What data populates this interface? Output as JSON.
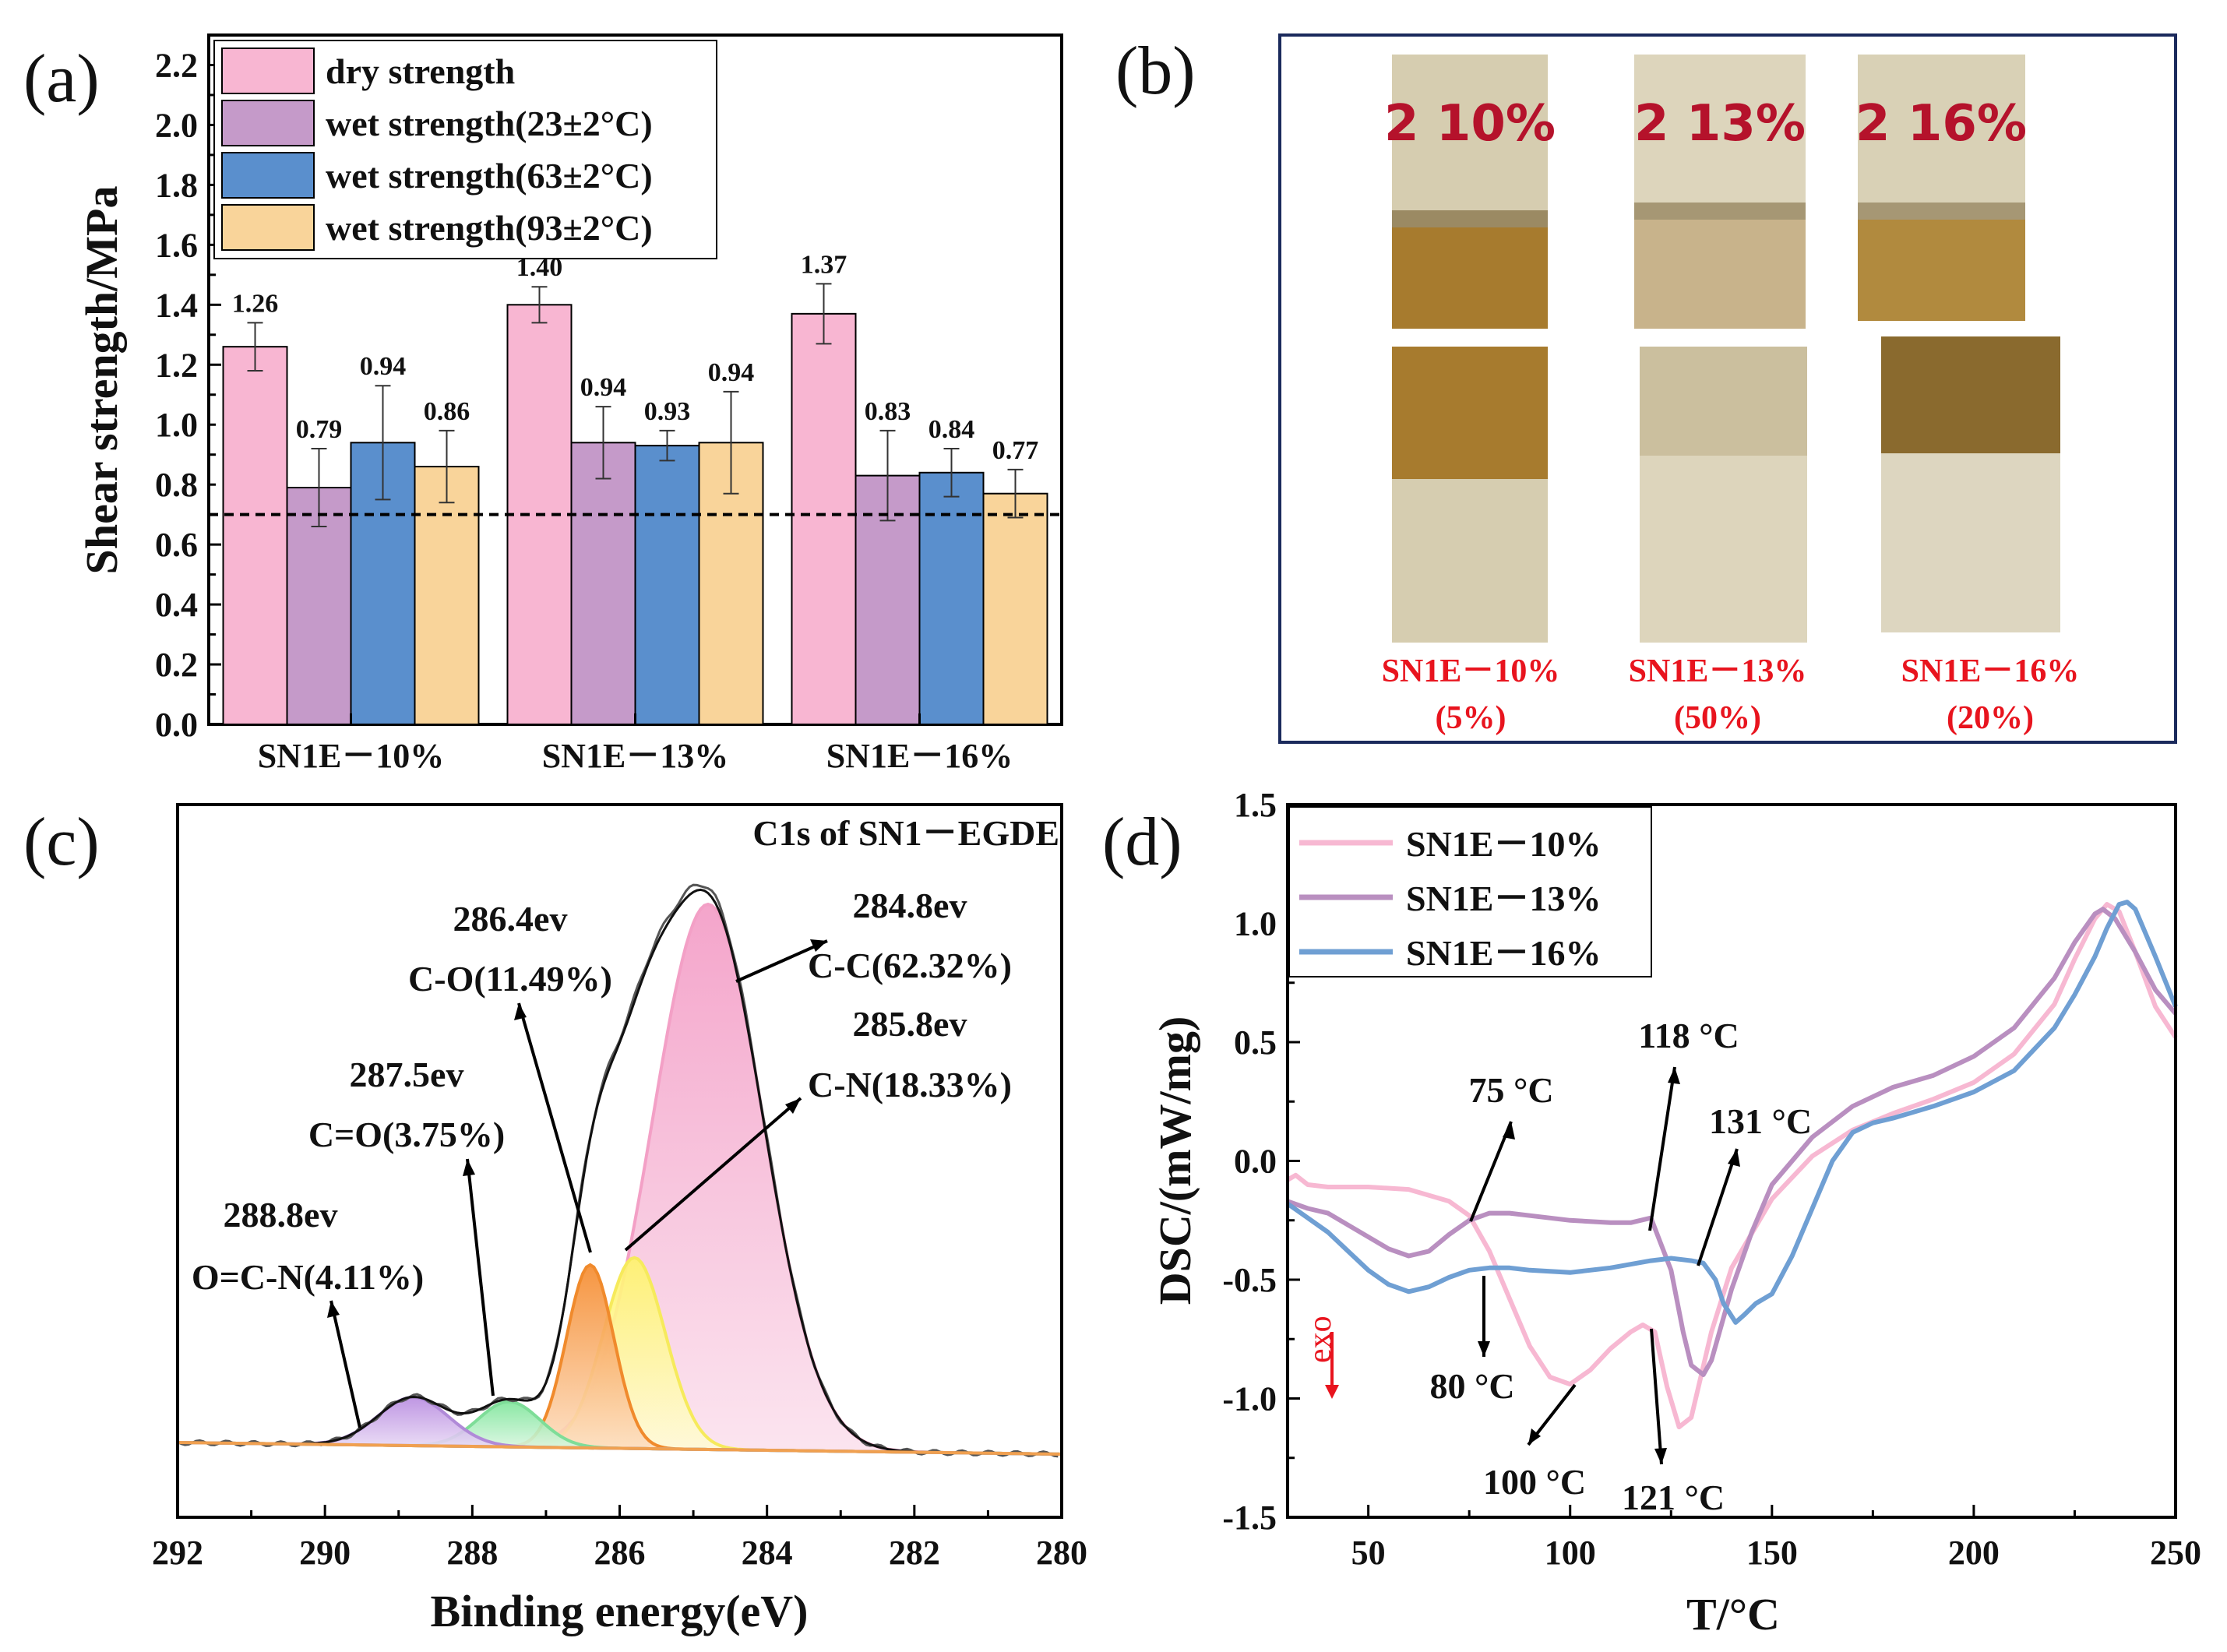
{
  "panels": {
    "a": "(a)",
    "b": "(b)",
    "c": "(c)",
    "d": "(d)"
  },
  "colors": {
    "dry": "#f8b6d2",
    "wet23": "#c59ac9",
    "wet63": "#5a8fcd",
    "wet93": "#f9d49a",
    "dsc10": "#f7b8d2",
    "dsc13": "#b98fc0",
    "dsc16": "#6f9fd3",
    "photo_label": "#e8141e",
    "photo_frame": "#1b2a5c"
  },
  "chart_data": [
    {
      "id": "a",
      "type": "bar",
      "title": "",
      "xlabel": "",
      "ylabel": "Shear strength/MPa",
      "ylim": [
        0,
        2.3
      ],
      "yticks": [
        "0.0",
        "0.2",
        "0.4",
        "0.6",
        "0.8",
        "1.0",
        "1.2",
        "1.4",
        "1.6",
        "1.8",
        "2.0",
        "2.2"
      ],
      "categories": [
        "SN1E－10%",
        "SN1E－13%",
        "SN1E－16%"
      ],
      "reference_line": 0.7,
      "series": [
        {
          "name": "dry strength",
          "values": [
            1.26,
            1.4,
            1.37
          ],
          "errors": [
            0.08,
            0.06,
            0.1
          ],
          "labels": [
            "1.26",
            "1.40",
            "1.37"
          ]
        },
        {
          "name": "wet strength(23±2°C)",
          "values": [
            0.79,
            0.94,
            0.83
          ],
          "errors": [
            0.13,
            0.12,
            0.15
          ],
          "labels": [
            "0.79",
            "0.94",
            "0.83"
          ]
        },
        {
          "name": "wet strength(63±2°C)",
          "values": [
            0.94,
            0.93,
            0.84
          ],
          "errors": [
            0.19,
            0.05,
            0.08
          ],
          "labels": [
            "0.94",
            "0.93",
            "0.84"
          ]
        },
        {
          "name": "wet strength(93±2°C)",
          "values": [
            0.86,
            0.94,
            0.77
          ],
          "errors": [
            0.12,
            0.17,
            0.08
          ],
          "labels": [
            "0.86",
            "0.94",
            "0.77"
          ]
        }
      ],
      "legend": "top-left"
    },
    {
      "id": "c",
      "type": "line",
      "title": "C1s of SN1－EGDE",
      "xlabel": "Binding energy(eV)",
      "ylabel": "",
      "xlim": [
        292,
        280
      ],
      "xticks": [
        "292",
        "290",
        "288",
        "286",
        "284",
        "282",
        "280"
      ],
      "peaks": [
        {
          "center": 284.8,
          "percent": 62.32,
          "bond": "C-C",
          "label_energy": "284.8ev",
          "label_bond": "C-C(62.32%)"
        },
        {
          "center": 285.8,
          "percent": 18.33,
          "bond": "C-N",
          "label_energy": "285.8ev",
          "label_bond": "C-N(18.33%)"
        },
        {
          "center": 286.4,
          "percent": 11.49,
          "bond": "C-O",
          "label_energy": "286.4ev",
          "label_bond": "C-O(11.49%)"
        },
        {
          "center": 287.5,
          "percent": 3.75,
          "bond": "C=O",
          "label_energy": "287.5ev",
          "label_bond": "C=O(3.75%)"
        },
        {
          "center": 288.8,
          "percent": 4.11,
          "bond": "O=C-N",
          "label_energy": "288.8ev",
          "label_bond": "O=C-N(4.11%)"
        }
      ]
    },
    {
      "id": "d",
      "type": "line",
      "title": "",
      "xlabel": "T/°C",
      "ylabel": "DSC/(mW/mg)",
      "xlim": [
        30,
        250
      ],
      "ylim": [
        -1.5,
        1.5
      ],
      "xticks": [
        "50",
        "100",
        "150",
        "200",
        "250"
      ],
      "yticks": [
        "-1.5",
        "-1.0",
        "-0.5",
        "0.0",
        "0.5",
        "1.0",
        "1.5"
      ],
      "exo_label": "exo",
      "legend": "top-left",
      "series": [
        {
          "name": "SN1E－10%",
          "x": [
            30,
            32,
            35,
            40,
            50,
            60,
            70,
            75,
            80,
            85,
            90,
            95,
            100,
            105,
            110,
            115,
            118,
            121,
            124,
            127,
            130,
            135,
            140,
            150,
            160,
            170,
            180,
            190,
            200,
            210,
            220,
            225,
            230,
            233,
            236,
            240,
            245,
            250
          ],
          "y": [
            -0.08,
            -0.06,
            -0.1,
            -0.11,
            -0.11,
            -0.12,
            -0.17,
            -0.23,
            -0.38,
            -0.58,
            -0.78,
            -0.91,
            -0.94,
            -0.88,
            -0.79,
            -0.72,
            -0.69,
            -0.72,
            -0.95,
            -1.12,
            -1.08,
            -0.72,
            -0.45,
            -0.16,
            0.02,
            0.13,
            0.2,
            0.26,
            0.33,
            0.45,
            0.66,
            0.85,
            1.02,
            1.08,
            1.05,
            0.88,
            0.65,
            0.52
          ]
        },
        {
          "name": "SN1E－13%",
          "x": [
            30,
            35,
            40,
            45,
            50,
            55,
            60,
            65,
            70,
            75,
            80,
            85,
            90,
            100,
            110,
            115,
            120,
            125,
            128,
            130,
            133,
            135,
            140,
            145,
            150,
            160,
            170,
            180,
            190,
            200,
            210,
            220,
            225,
            230,
            232,
            235,
            240,
            245,
            250
          ],
          "y": [
            -0.17,
            -0.2,
            -0.22,
            -0.27,
            -0.32,
            -0.37,
            -0.4,
            -0.38,
            -0.31,
            -0.25,
            -0.22,
            -0.22,
            -0.23,
            -0.25,
            -0.26,
            -0.26,
            -0.24,
            -0.46,
            -0.72,
            -0.86,
            -0.9,
            -0.84,
            -0.54,
            -0.3,
            -0.1,
            0.1,
            0.23,
            0.31,
            0.36,
            0.44,
            0.56,
            0.77,
            0.92,
            1.04,
            1.06,
            1.02,
            0.88,
            0.72,
            0.62
          ]
        },
        {
          "name": "SN1E－16%",
          "x": [
            30,
            35,
            40,
            45,
            50,
            55,
            60,
            65,
            70,
            75,
            80,
            85,
            90,
            100,
            110,
            120,
            125,
            130,
            133,
            136,
            138,
            141,
            143,
            146,
            150,
            155,
            160,
            165,
            170,
            175,
            180,
            190,
            200,
            210,
            220,
            225,
            230,
            233,
            236,
            238,
            240,
            245,
            250
          ],
          "y": [
            -0.18,
            -0.24,
            -0.3,
            -0.38,
            -0.46,
            -0.52,
            -0.55,
            -0.53,
            -0.49,
            -0.46,
            -0.45,
            -0.45,
            -0.46,
            -0.47,
            -0.45,
            -0.42,
            -0.41,
            -0.42,
            -0.43,
            -0.5,
            -0.6,
            -0.68,
            -0.65,
            -0.6,
            -0.56,
            -0.4,
            -0.2,
            0.0,
            0.12,
            0.16,
            0.18,
            0.23,
            0.29,
            0.38,
            0.56,
            0.7,
            0.86,
            0.98,
            1.08,
            1.09,
            1.06,
            0.86,
            0.65
          ]
        }
      ],
      "annotations": [
        {
          "text": "75 °C"
        },
        {
          "text": "80 °C"
        },
        {
          "text": "100 °C"
        },
        {
          "text": "118 °C"
        },
        {
          "text": "121 °C"
        },
        {
          "text": "131 °C"
        }
      ]
    }
  ],
  "photo": {
    "specimens": [
      {
        "marking": "2 10%",
        "label": "SN1E－10%",
        "failure": "(5%)"
      },
      {
        "marking": "2 13%",
        "label": "SN1E－13%",
        "failure": "(50%)"
      },
      {
        "marking": "2 16%",
        "label": "SN1E－16%",
        "failure": "(20%)"
      }
    ]
  }
}
